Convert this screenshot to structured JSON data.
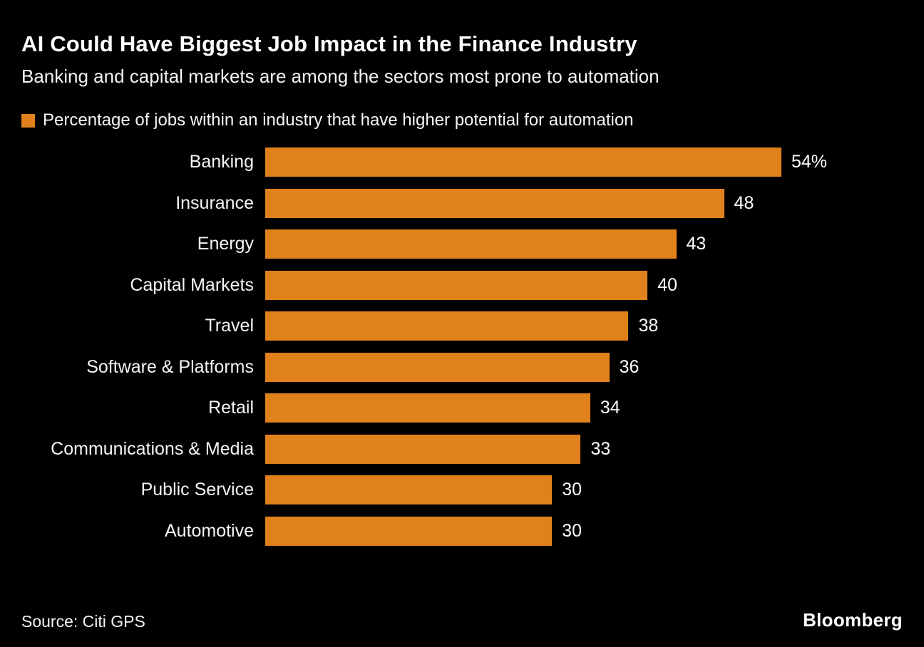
{
  "header": {
    "title": "AI Could Have Biggest Job Impact in the Finance Industry",
    "subtitle": "Banking and capital markets are among the sectors most prone to automation"
  },
  "legend": {
    "label": "Percentage of jobs within an industry that have higher potential for automation",
    "swatch_color": "#E0811C"
  },
  "chart_data": {
    "type": "bar",
    "orientation": "horizontal",
    "title": "AI Could Have Biggest Job Impact in the Finance Industry",
    "subtitle": "Banking and capital markets are among the sectors most prone to automation",
    "series_label": "Percentage of jobs within an industry that have higher potential for automation",
    "categories": [
      "Banking",
      "Insurance",
      "Energy",
      "Capital Markets",
      "Travel",
      "Software & Platforms",
      "Retail",
      "Communications & Media",
      "Public Service",
      "Automotive"
    ],
    "values": [
      54,
      48,
      43,
      40,
      38,
      36,
      34,
      33,
      30,
      30
    ],
    "value_labels": [
      "54%",
      "48",
      "43",
      "40",
      "38",
      "36",
      "34",
      "33",
      "30",
      "30"
    ],
    "xlabel": "",
    "ylabel": "",
    "xlim": [
      0,
      54
    ],
    "grid": false,
    "legend_position": "top-left",
    "bar_color": "#E0811C",
    "background_color": "#000000",
    "text_color": "#FFFFFF"
  },
  "footer": {
    "source": "Source: Citi GPS",
    "brand": "Bloomberg"
  }
}
